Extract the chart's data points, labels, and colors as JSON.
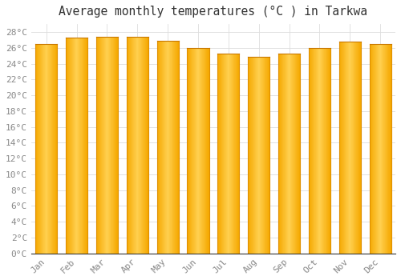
{
  "title": "Average monthly temperatures (°C ) in Tarkwa",
  "months": [
    "Jan",
    "Feb",
    "Mar",
    "Apr",
    "May",
    "Jun",
    "Jul",
    "Aug",
    "Sep",
    "Oct",
    "Nov",
    "Dec"
  ],
  "values": [
    26.5,
    27.3,
    27.4,
    27.4,
    26.9,
    26.0,
    25.3,
    24.9,
    25.3,
    26.0,
    26.8,
    26.5
  ],
  "bar_color_edge": "#F5A800",
  "bar_color_center": "#FFD050",
  "background_color": "#FFFFFF",
  "plot_bg_color": "#FFFFFF",
  "grid_color": "#DDDDDD",
  "ylim": [
    0,
    29
  ],
  "ytick_step": 2,
  "title_fontsize": 10.5,
  "tick_fontsize": 8,
  "tick_color": "#888888",
  "bar_width": 0.72,
  "title_color": "#333333"
}
